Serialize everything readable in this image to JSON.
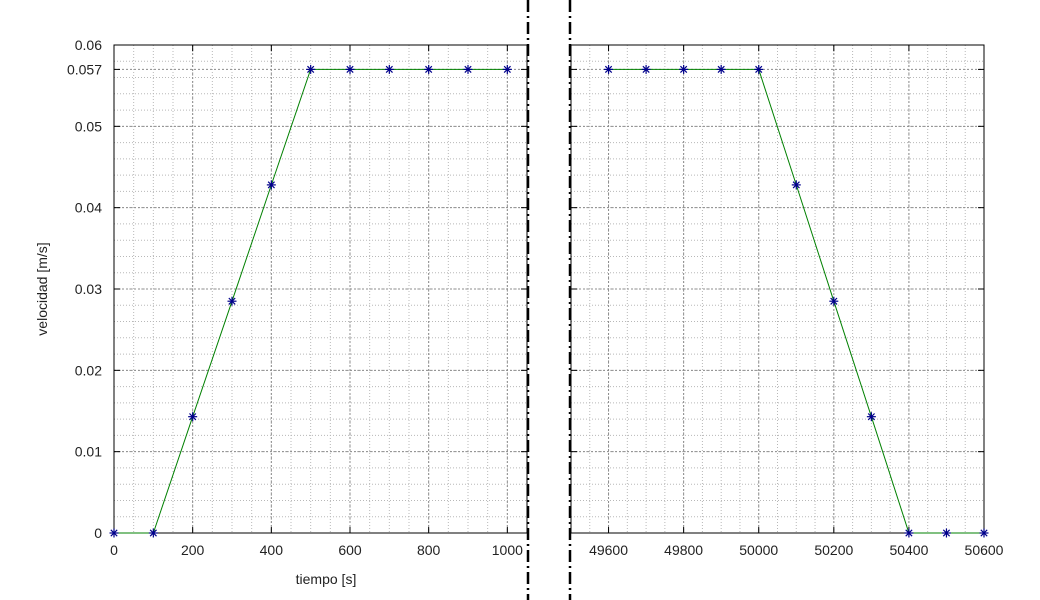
{
  "chart_data": {
    "type": "line",
    "title": "",
    "xlabel": "tiempo [s]",
    "ylabel": "velocidad [m/s]",
    "ylim": [
      0,
      0.06
    ],
    "yticks": [
      {
        "value": 0,
        "label": "0"
      },
      {
        "value": 0.01,
        "label": "0.01"
      },
      {
        "value": 0.02,
        "label": "0.02"
      },
      {
        "value": 0.03,
        "label": "0.03"
      },
      {
        "value": 0.04,
        "label": "0.04"
      },
      {
        "value": 0.05,
        "label": "0.05"
      },
      {
        "value": 0.057,
        "label": "0.057"
      },
      {
        "value": 0.06,
        "label": "0.06"
      }
    ],
    "grid": true,
    "line_color": "#008000",
    "marker_color": "#00008b",
    "marker": "asterisk",
    "axis_break": "dash-dot",
    "panels": [
      {
        "xlim": [
          0,
          1050
        ],
        "xticks": [
          {
            "value": 0,
            "label": "0"
          },
          {
            "value": 200,
            "label": "200"
          },
          {
            "value": 400,
            "label": "400"
          },
          {
            "value": 600,
            "label": "600"
          },
          {
            "value": 800,
            "label": "800"
          },
          {
            "value": 1000,
            "label": "1000"
          }
        ],
        "x": [
          0,
          100,
          200,
          300,
          400,
          500,
          600,
          700,
          800,
          900,
          1000
        ],
        "y": [
          0,
          0,
          0.0143,
          0.0285,
          0.0428,
          0.057,
          0.057,
          0.057,
          0.057,
          0.057,
          0.057
        ]
      },
      {
        "xlim": [
          49500,
          50600
        ],
        "xticks": [
          {
            "value": 49600,
            "label": "49600"
          },
          {
            "value": 49800,
            "label": "49800"
          },
          {
            "value": 50000,
            "label": "50000"
          },
          {
            "value": 50200,
            "label": "50200"
          },
          {
            "value": 50400,
            "label": "50400"
          },
          {
            "value": 50600,
            "label": "50600"
          }
        ],
        "x": [
          49600,
          49700,
          49800,
          49900,
          50000,
          50100,
          50200,
          50300,
          50400,
          50500,
          50600
        ],
        "y": [
          0.057,
          0.057,
          0.057,
          0.057,
          0.057,
          0.0428,
          0.0285,
          0.0143,
          0,
          0,
          0
        ]
      }
    ]
  }
}
